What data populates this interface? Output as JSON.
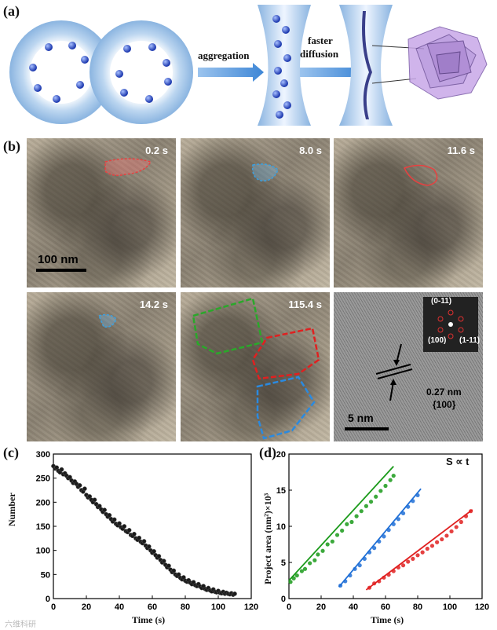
{
  "panel_a": {
    "label": "(a)",
    "arrow1_label": "aggregation",
    "arrow2_label_line1": "faster",
    "arrow2_label_line2": "diffusion"
  },
  "panel_b": {
    "label": "(b)",
    "frames": [
      "0.2 s",
      "8.0 s",
      "11.6 s",
      "14.2 s",
      "115.4 s"
    ],
    "scale_bar_1": "100 nm",
    "hrtem": {
      "scale_bar": "5 nm",
      "spacing": "0.27 nm",
      "plane": "{100}",
      "fft_labels": [
        "(0-11)",
        "(100)",
        "(1-11)"
      ]
    }
  },
  "panel_c": {
    "label": "(c)",
    "chart_data": {
      "type": "scatter",
      "xlabel": "Time (s)",
      "ylabel": "Number",
      "xlim": [
        0,
        120
      ],
      "ylim": [
        0,
        300
      ],
      "xticks": [
        0,
        20,
        40,
        60,
        80,
        100,
        120
      ],
      "yticks": [
        0,
        50,
        100,
        150,
        200,
        250,
        300
      ],
      "x": [
        0,
        1,
        2,
        3,
        4,
        5,
        6,
        7,
        8,
        9,
        10,
        11,
        12,
        13,
        14,
        15,
        16,
        17,
        18,
        19,
        20,
        21,
        22,
        23,
        24,
        25,
        26,
        27,
        28,
        29,
        30,
        31,
        32,
        33,
        34,
        35,
        36,
        37,
        38,
        39,
        40,
        41,
        42,
        43,
        44,
        45,
        46,
        47,
        48,
        49,
        50,
        51,
        52,
        53,
        54,
        55,
        56,
        57,
        58,
        59,
        60,
        61,
        62,
        63,
        64,
        65,
        66,
        67,
        68,
        69,
        70,
        71,
        72,
        73,
        74,
        75,
        76,
        77,
        78,
        79,
        80,
        81,
        82,
        83,
        84,
        85,
        86,
        87,
        88,
        89,
        90,
        91,
        92,
        93,
        94,
        95,
        96,
        97,
        98,
        99,
        100,
        101,
        102,
        103,
        104,
        105,
        106,
        107,
        108,
        109,
        110
      ],
      "y": [
        275,
        270,
        272,
        265,
        262,
        268,
        258,
        260,
        255,
        250,
        252,
        245,
        240,
        243,
        238,
        232,
        235,
        225,
        222,
        228,
        215,
        210,
        212,
        205,
        200,
        205,
        196,
        190,
        192,
        185,
        180,
        184,
        175,
        170,
        173,
        165,
        160,
        164,
        155,
        152,
        156,
        148,
        145,
        150,
        140,
        138,
        142,
        132,
        130,
        134,
        125,
        122,
        126,
        118,
        115,
        119,
        110,
        105,
        108,
        100,
        95,
        98,
        90,
        85,
        88,
        80,
        75,
        78,
        70,
        65,
        68,
        60,
        55,
        58,
        50,
        47,
        50,
        43,
        40,
        44,
        37,
        35,
        38,
        33,
        30,
        34,
        28,
        26,
        30,
        25,
        22,
        26,
        20,
        18,
        22,
        17,
        15,
        19,
        14,
        13,
        16,
        12,
        11,
        14,
        10,
        12,
        10,
        9,
        11,
        8,
        10
      ]
    }
  },
  "panel_d": {
    "label": "(d)",
    "annotation": "S ∝ t",
    "chart_data": {
      "type": "scatter",
      "xlabel": "Time (s)",
      "ylabel": "Project area (nm²)×10³",
      "xlim": [
        0,
        120
      ],
      "ylim": [
        0,
        20
      ],
      "xticks": [
        0,
        20,
        40,
        60,
        80,
        100,
        120
      ],
      "yticks": [
        0,
        5,
        10,
        15,
        20
      ],
      "series": [
        {
          "color": "#1a9a1a",
          "x": [
            1,
            3,
            5,
            8,
            10,
            13,
            16,
            18,
            21,
            24,
            27,
            30,
            33,
            36,
            39,
            42,
            45,
            48,
            51,
            54,
            57,
            60,
            63,
            65
          ],
          "y": [
            2.3,
            2.8,
            3.2,
            3.8,
            4.1,
            4.9,
            5.3,
            6.1,
            6.6,
            7.5,
            7.9,
            8.8,
            9.4,
            10.3,
            10.6,
            11.4,
            12.1,
            12.8,
            13.4,
            14.1,
            14.9,
            15.6,
            16.4,
            17.0
          ],
          "fit": [
            [
              0,
              2.5
            ],
            [
              65,
              18.3
            ]
          ]
        },
        {
          "color": "#1f6fd6",
          "x": [
            32,
            35,
            38,
            41,
            44,
            47,
            50,
            53,
            56,
            59,
            62,
            65,
            68,
            71,
            74,
            77,
            80
          ],
          "y": [
            1.8,
            2.4,
            3.2,
            4.1,
            4.6,
            5.5,
            6.4,
            7.0,
            7.9,
            8.6,
            9.5,
            10.3,
            11.0,
            11.8,
            12.7,
            13.5,
            14.3
          ],
          "fit": [
            [
              31,
              1.6
            ],
            [
              82,
              15.2
            ]
          ]
        },
        {
          "color": "#e02020",
          "x": [
            50,
            53,
            56,
            59,
            62,
            65,
            68,
            71,
            74,
            77,
            80,
            83,
            86,
            89,
            92,
            95,
            98,
            101,
            104,
            107,
            110,
            113
          ],
          "y": [
            1.5,
            2.1,
            2.4,
            2.9,
            3.3,
            3.8,
            4.3,
            4.6,
            5.1,
            5.5,
            6.0,
            6.4,
            6.9,
            7.3,
            7.8,
            8.2,
            8.7,
            9.3,
            9.9,
            10.6,
            11.4,
            12.1
          ],
          "fit": [
            [
              48,
              1.2
            ],
            [
              114,
              12.3
            ]
          ]
        }
      ]
    }
  },
  "watermark": "六维科研"
}
